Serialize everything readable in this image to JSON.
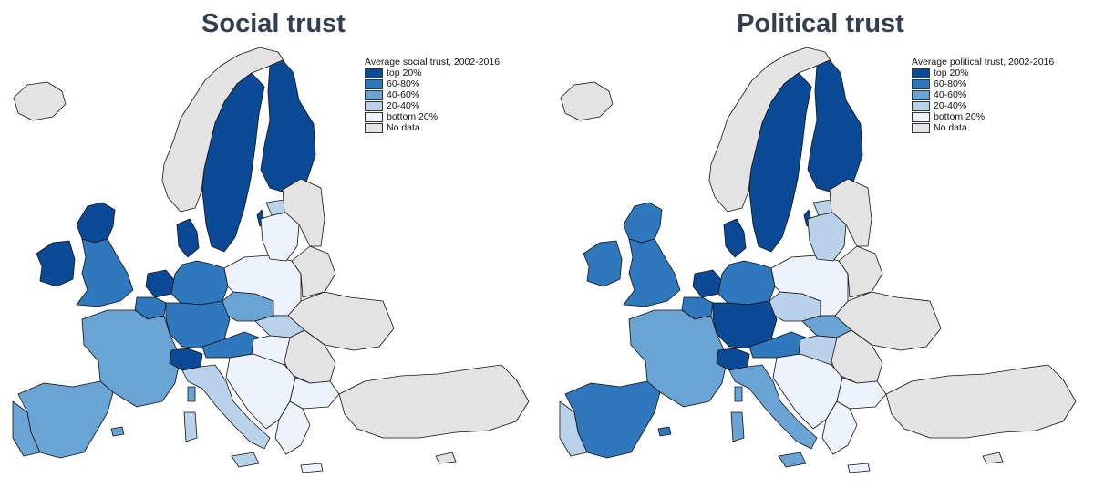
{
  "palette": {
    "top20": "#0a4a97",
    "p60_80": "#2f78bd",
    "p40_60": "#6aa4d4",
    "p20_40": "#b9d2ea",
    "bottom20": "#eef3fb",
    "nodata": "#e3e3e3"
  },
  "legend_labels": {
    "top20": "top 20%",
    "p60_80": "60-80%",
    "p40_60": "40-60%",
    "p20_40": "20-40%",
    "bottom20": "bottom 20%",
    "nodata": "No data"
  },
  "maps": [
    {
      "id": "social",
      "title": "Social trust",
      "legend_title": "Average social trust, 2002-2016",
      "regions": {
        "iceland": "nodata",
        "norway": "nodata",
        "sweden": "top20",
        "finland": "top20",
        "ireland": "top20",
        "scotland": "top20",
        "england_wales": "p60_80",
        "denmark": "top20",
        "netherlands": "top20",
        "belgium": "p60_80",
        "germany_north": "p60_80",
        "germany_south": "p60_80",
        "switzerland": "top20",
        "austria": "p60_80",
        "france": "p40_60",
        "spain": "p40_60",
        "portugal": "p40_60",
        "italy": "p20_40",
        "poland": "bottom20",
        "czechia": "p40_60",
        "slovakia": "p20_40",
        "hungary": "bottom20",
        "baltics": "bottom20",
        "belarus": "nodata",
        "ukraine": "nodata",
        "romania": "nodata",
        "balkans": "bottom20",
        "bulgaria": "bottom20",
        "greece": "bottom20",
        "turkey": "nodata",
        "russia_west": "nodata",
        "estonia": "p20_40",
        "cyprus": "nodata",
        "sardinia": "p20_40",
        "corsica": "p40_60",
        "sicily": "p20_40",
        "gotland": "top20",
        "crete": "bottom20",
        "balearics": "p40_60"
      }
    },
    {
      "id": "political",
      "title": "Political trust",
      "legend_title": "Average political trust, 2002-2016",
      "regions": {
        "iceland": "nodata",
        "norway": "nodata",
        "sweden": "top20",
        "finland": "top20",
        "ireland": "p60_80",
        "scotland": "p60_80",
        "england_wales": "p60_80",
        "denmark": "top20",
        "netherlands": "top20",
        "belgium": "p60_80",
        "germany_north": "p60_80",
        "germany_south": "top20",
        "switzerland": "top20",
        "austria": "p60_80",
        "france": "p40_60",
        "spain": "p60_80",
        "portugal": "p20_40",
        "italy": "p40_60",
        "poland": "bottom20",
        "czechia": "p20_40",
        "slovakia": "p40_60",
        "hungary": "p20_40",
        "baltics": "p20_40",
        "belarus": "nodata",
        "ukraine": "nodata",
        "romania": "nodata",
        "balkans": "bottom20",
        "bulgaria": "bottom20",
        "greece": "bottom20",
        "turkey": "nodata",
        "russia_west": "nodata",
        "estonia": "p20_40",
        "cyprus": "nodata",
        "sardinia": "p40_60",
        "corsica": "p40_60",
        "sicily": "p40_60",
        "gotland": "top20",
        "crete": "bottom20",
        "balearics": "p60_80"
      }
    }
  ]
}
